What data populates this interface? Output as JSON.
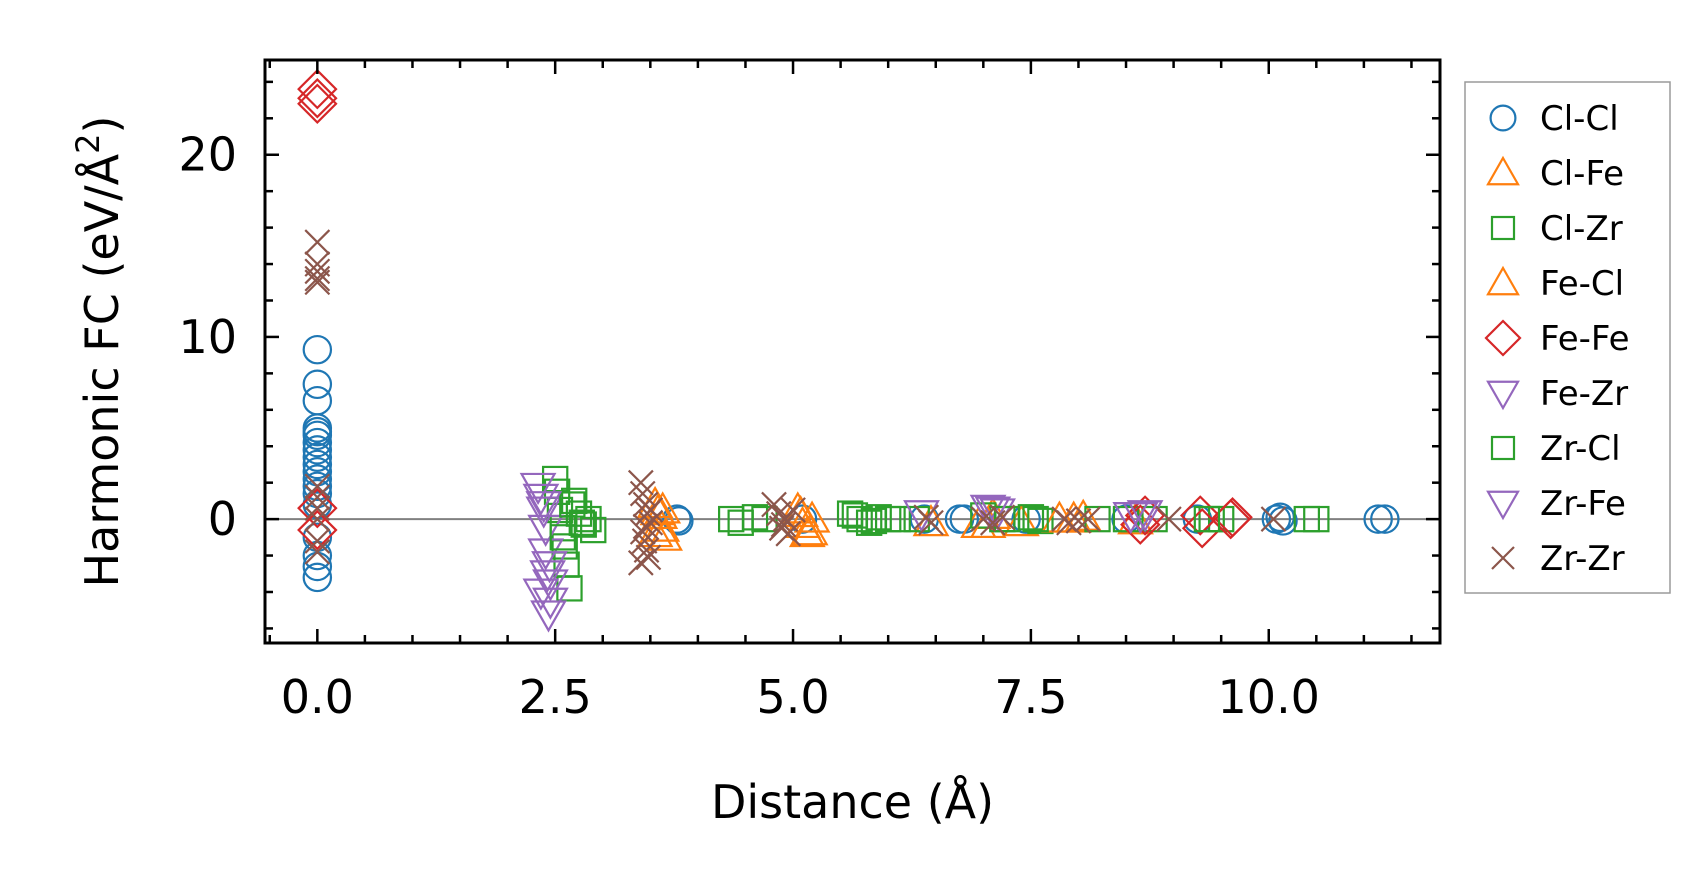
{
  "chart_data": {
    "type": "scatter",
    "xlabel": "Distance (Å)",
    "ylabel_main": "Harmonic FC (eV/Å",
    "ylabel_sup": "2",
    "ylabel_close": ")",
    "xlim": [
      -0.55,
      11.8
    ],
    "ylim": [
      -6.8,
      25.2
    ],
    "xticks": [
      0.0,
      2.5,
      5.0,
      7.5,
      10.0
    ],
    "xtick_labels": [
      "0.0",
      "2.5",
      "5.0",
      "7.5",
      "10.0"
    ],
    "yticks": [
      0,
      10,
      20
    ],
    "ytick_labels": [
      "0",
      "10",
      "20"
    ],
    "zero_line": true,
    "grid": false,
    "legend_position": "outside-right",
    "series": [
      {
        "name": "Cl-Cl",
        "marker": "circle",
        "color": "#1f77b4",
        "x": [
          0,
          0,
          0,
          0,
          0,
          0,
          0,
          0,
          0,
          0,
          0,
          0,
          0,
          0,
          0,
          0,
          0,
          0,
          0,
          3.78,
          3.8,
          5.1,
          6.38,
          6.75,
          6.8,
          7.45,
          8.5,
          9.25,
          10.08,
          10.12,
          10.15,
          11.15,
          11.22
        ],
        "y": [
          9.3,
          7.4,
          6.5,
          5.0,
          4.8,
          4.6,
          4.2,
          3.8,
          3.4,
          3.0,
          2.6,
          2.2,
          1.8,
          1.4,
          0.8,
          -1.0,
          -2.0,
          -2.6,
          -3.2,
          0.0,
          -0.1,
          0.0,
          0.0,
          0.0,
          0.0,
          0.0,
          0.0,
          0.0,
          0.0,
          0.1,
          -0.1,
          0.0,
          0.0
        ]
      },
      {
        "name": "Cl-Fe",
        "marker": "triangle-up",
        "color": "#ff7f0e",
        "x": [
          3.55,
          3.6,
          3.62,
          3.65,
          3.58,
          5.05,
          5.1,
          5.15,
          5.2,
          6.45,
          6.95,
          7.1,
          7.4,
          7.95,
          8.05,
          8.6
        ],
        "y": [
          0.8,
          0.2,
          -0.5,
          -1.0,
          0.4,
          0.5,
          -0.3,
          -0.8,
          0.0,
          -0.2,
          -0.3,
          0.2,
          -0.2,
          0.0,
          0.1,
          -0.1
        ]
      },
      {
        "name": "Cl-Zr",
        "marker": "square",
        "color": "#2ca02c",
        "x": [
          2.5,
          2.52,
          2.55,
          2.58,
          2.6,
          2.62,
          2.65,
          2.7,
          2.75,
          2.8,
          2.85,
          2.9,
          4.35,
          4.45,
          4.6,
          4.7,
          5.6,
          5.7,
          5.8,
          5.9,
          6.0,
          6.1,
          6.3,
          7.0,
          7.2,
          7.5,
          7.6,
          8.2,
          8.5,
          8.8,
          9.4,
          9.5,
          10.4,
          10.5
        ],
        "y": [
          2.2,
          1.5,
          0.5,
          -0.5,
          -1.5,
          -2.5,
          -3.8,
          1.0,
          0.3,
          -0.3,
          0.0,
          -0.6,
          0.0,
          -0.2,
          0.1,
          0.0,
          0.3,
          0.0,
          -0.2,
          0.1,
          0.0,
          0.0,
          0.0,
          0.2,
          0.0,
          0.1,
          -0.1,
          0.0,
          0.0,
          0.0,
          0.0,
          0.0,
          0.0,
          0.0
        ]
      },
      {
        "name": "Fe-Cl",
        "marker": "triangle-up",
        "color": "#ff7f0e",
        "x": [
          3.55,
          3.63,
          5.08,
          5.18,
          7.05,
          7.8
        ],
        "y": [
          -0.8,
          0.5,
          0.3,
          -0.7,
          -0.3,
          0.0
        ]
      },
      {
        "name": "Fe-Fe",
        "marker": "diamond",
        "color": "#d62728",
        "x": [
          0,
          0,
          0,
          0,
          0,
          8.65,
          8.7,
          9.28,
          9.3,
          9.6,
          9.62
        ],
        "y": [
          23.6,
          23.1,
          22.8,
          0.6,
          -0.6,
          -0.3,
          0.2,
          0.2,
          -0.5,
          0.0,
          0.1
        ]
      },
      {
        "name": "Fe-Zr",
        "marker": "triangle-down",
        "color": "#9467bd",
        "x": [
          2.32,
          2.35,
          2.38,
          2.4,
          2.4,
          2.42,
          2.45,
          2.35,
          2.45,
          2.43,
          6.35,
          7.05,
          7.15,
          8.55,
          8.7
        ],
        "y": [
          1.8,
          1.2,
          0.5,
          -0.5,
          -1.8,
          -3.0,
          -3.5,
          -4.0,
          -4.5,
          -5.2,
          0.3,
          0.6,
          0.4,
          0.2,
          0.3
        ]
      },
      {
        "name": "Zr-Cl",
        "marker": "square",
        "color": "#2ca02c",
        "x": [
          2.58,
          2.68,
          2.78,
          5.65,
          5.85,
          7.25,
          7.55,
          9.35
        ],
        "y": [
          -1.0,
          0.8,
          -0.2,
          0.2,
          -0.1,
          0.0,
          0.0,
          0.0
        ]
      },
      {
        "name": "Zr-Fe",
        "marker": "triangle-down",
        "color": "#9467bd",
        "x": [
          2.38,
          2.44,
          7.1,
          8.65
        ],
        "y": [
          0.8,
          -2.5,
          0.5,
          0.2
        ]
      },
      {
        "name": "Zr-Zr",
        "marker": "x",
        "color": "#8c564b",
        "x": [
          0,
          0,
          0,
          0,
          0,
          0,
          0,
          0,
          0,
          0,
          0,
          3.4,
          3.42,
          3.45,
          3.47,
          3.5,
          3.42,
          3.44,
          3.46,
          3.48,
          3.4,
          3.5,
          3.45,
          4.8,
          4.85,
          4.9,
          4.95,
          5.0,
          4.88,
          4.92,
          6.4,
          6.45,
          7.0,
          7.1,
          7.2,
          7.85,
          7.9,
          8.0,
          8.1,
          8.95,
          10.05
        ],
        "y": [
          15.2,
          14.0,
          13.6,
          13.2,
          13.0,
          1.8,
          1.2,
          0.6,
          0.0,
          -1.2,
          -1.8,
          2.0,
          1.4,
          0.8,
          0.3,
          -0.2,
          -0.7,
          -1.2,
          -1.7,
          -2.1,
          -2.4,
          0.5,
          -0.4,
          0.8,
          0.3,
          -0.3,
          -0.8,
          0.5,
          -0.5,
          0.0,
          0.1,
          -0.2,
          0.0,
          -0.2,
          0.1,
          0.0,
          -0.2,
          -0.1,
          0.0,
          0.0,
          0.0
        ]
      }
    ]
  }
}
